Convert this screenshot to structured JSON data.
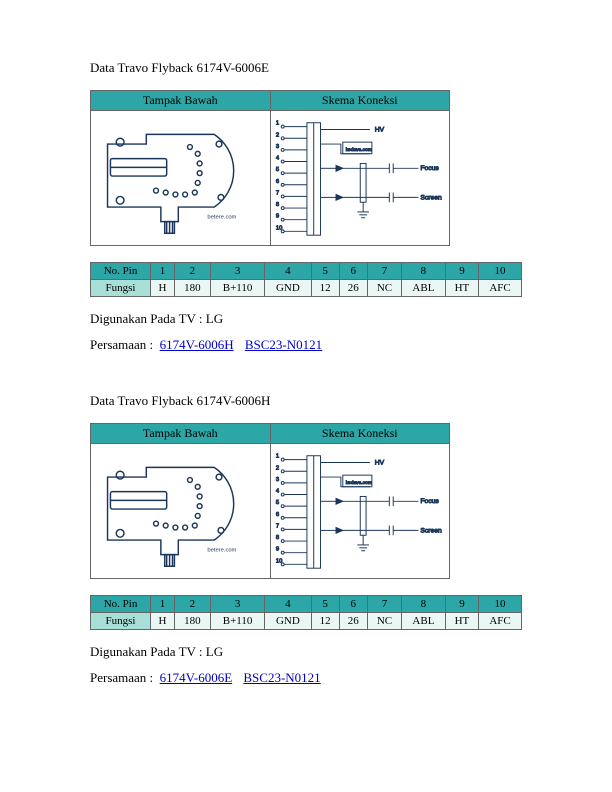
{
  "sections": [
    {
      "title": "Data Travo Flyback 6174V-6006E",
      "diagram_headers": [
        "Tampak Bawah",
        "Skema Koneksi"
      ],
      "pin_header_label": "No. Pin",
      "fn_header_label": "Fungsi",
      "pins": [
        "1",
        "2",
        "3",
        "4",
        "5",
        "6",
        "7",
        "8",
        "9",
        "10"
      ],
      "funcs": [
        "H",
        "180",
        "B+110",
        "GND",
        "12",
        "26",
        "NC",
        "ABL",
        "HT",
        "AFC"
      ],
      "used_label": "Digunakan Pada TV : LG",
      "persamaan_label": "Persamaan :",
      "links": [
        "6174V-6006H",
        "BSC23-N0121"
      ],
      "footprint_label": "betere.com",
      "schematic_labels": {
        "hv": "HV",
        "focus": "Focus",
        "screen": "Screen",
        "site": "kedava.com"
      }
    },
    {
      "title": "Data Travo Flyback 6174V-6006H",
      "diagram_headers": [
        "Tampak Bawah",
        "Skema Koneksi"
      ],
      "pin_header_label": "No. Pin",
      "fn_header_label": "Fungsi",
      "pins": [
        "1",
        "2",
        "3",
        "4",
        "5",
        "6",
        "7",
        "8",
        "9",
        "10"
      ],
      "funcs": [
        "H",
        "180",
        "B+110",
        "GND",
        "12",
        "26",
        "NC",
        "ABL",
        "HT",
        "AFC"
      ],
      "used_label": "Digunakan Pada TV : LG",
      "persamaan_label": "Persamaan :",
      "links": [
        "6174V-6006E",
        "BSC23-N0121"
      ],
      "footprint_label": "betere.com",
      "schematic_labels": {
        "hv": "HV",
        "focus": "Focus",
        "screen": "Screen",
        "site": "kedava.com"
      }
    }
  ],
  "colors": {
    "header_bg": "#2ca6a6",
    "label_bg": "#a8e0d8",
    "value_bg": "#eaf7f5",
    "link": "#0000cc",
    "stroke": "#1a365a"
  }
}
